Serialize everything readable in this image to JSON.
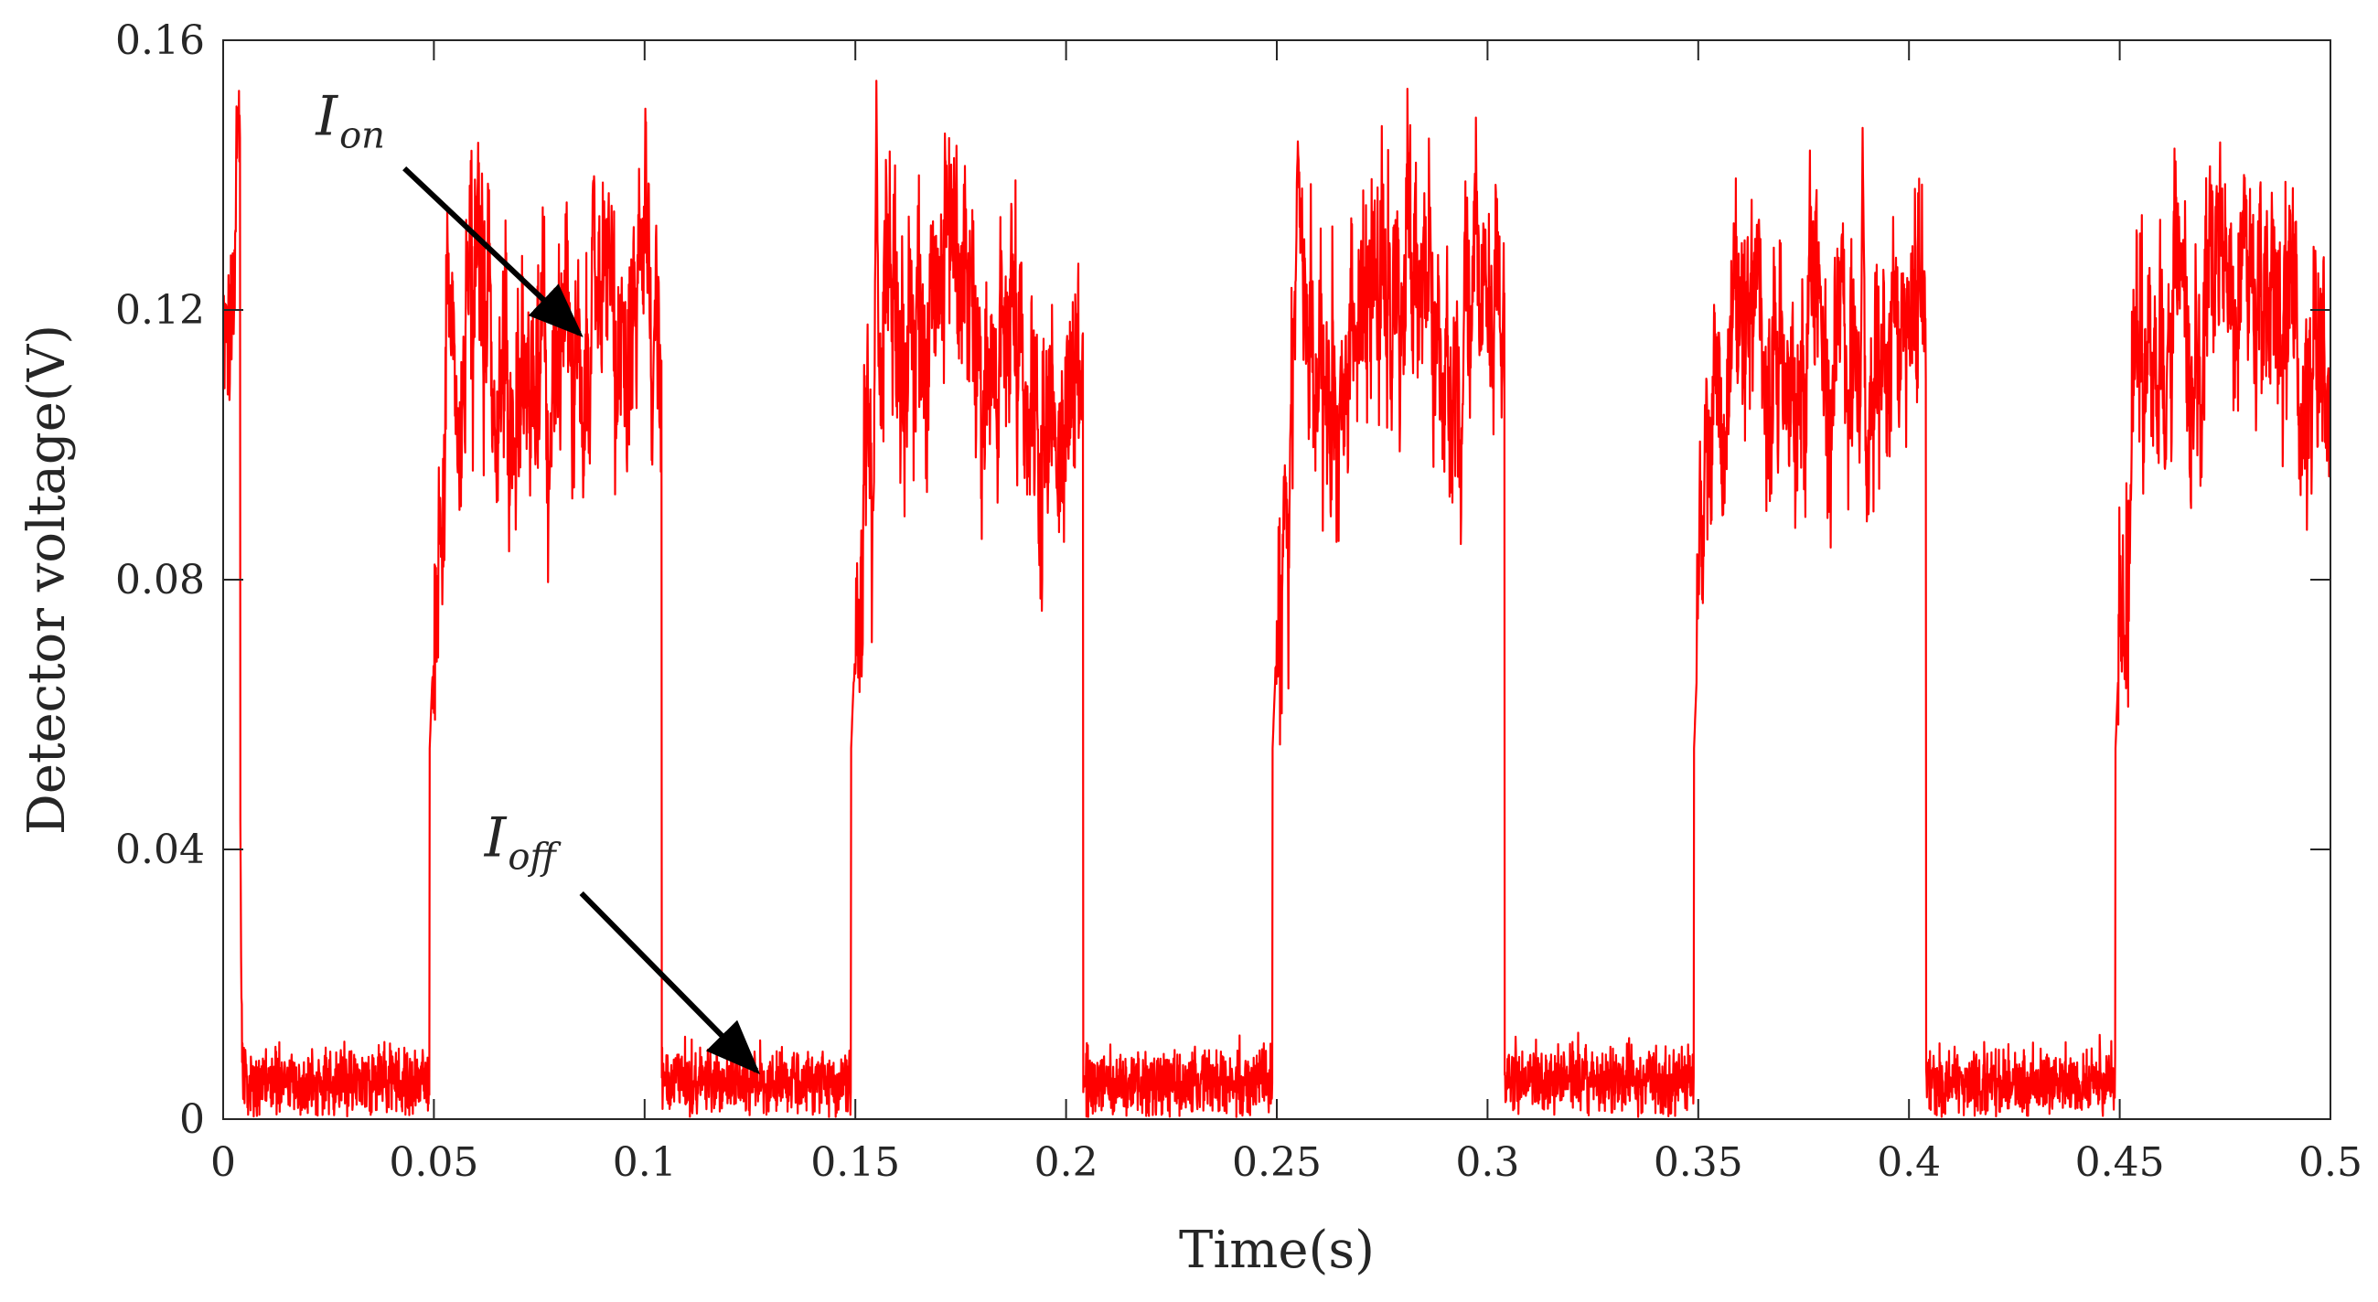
{
  "chart_data": {
    "type": "line",
    "title": "",
    "xlabel": "Time(s)",
    "ylabel": "Detector voltage(V)",
    "xlim": [
      0,
      0.5
    ],
    "ylim": [
      0,
      0.16
    ],
    "grid": false,
    "box": true,
    "x_ticks": [
      {
        "value": 0,
        "label": "0"
      },
      {
        "value": 0.05,
        "label": "0.05"
      },
      {
        "value": 0.1,
        "label": "0.1"
      },
      {
        "value": 0.15,
        "label": "0.15"
      },
      {
        "value": 0.2,
        "label": "0.2"
      },
      {
        "value": 0.25,
        "label": "0.25"
      },
      {
        "value": 0.3,
        "label": "0.3"
      },
      {
        "value": 0.35,
        "label": "0.35"
      },
      {
        "value": 0.4,
        "label": "0.4"
      },
      {
        "value": 0.45,
        "label": "0.45"
      },
      {
        "value": 0.5,
        "label": "0.5"
      }
    ],
    "y_ticks": [
      {
        "value": 0,
        "label": "0"
      },
      {
        "value": 0.04,
        "label": "0.04"
      },
      {
        "value": 0.08,
        "label": "0.08"
      },
      {
        "value": 0.12,
        "label": "0.12"
      },
      {
        "value": 0.16,
        "label": "0.16"
      }
    ],
    "series": [
      {
        "name": "Detector voltage",
        "color": "#ff0000",
        "off_level": 0.0055,
        "on_level": 0.12,
        "noise_off": 0.0045,
        "noise_on": 0.012,
        "rise_start_level": 0.055,
        "initial_on_until": 0.004,
        "on_intervals": [
          [
            0.049,
            0.104
          ],
          [
            0.149,
            0.204
          ],
          [
            0.249,
            0.304
          ],
          [
            0.349,
            0.404
          ],
          [
            0.449,
            0.5
          ]
        ],
        "peaks": [
          {
            "x": 0.0035,
            "y": 0.15
          },
          {
            "x": 0.155,
            "y": 0.154
          },
          {
            "x": 0.255,
            "y": 0.145
          },
          {
            "x": 0.389,
            "y": 0.147
          },
          {
            "x": 0.0878,
            "y": 0.141
          }
        ]
      }
    ],
    "annotations": [
      {
        "name": "ion",
        "main": "I",
        "sub": "on",
        "text_at": [
          0.022,
          0.146
        ],
        "arrow_from": [
          0.043,
          0.141
        ],
        "arrow_to": [
          0.0845,
          0.1165
        ]
      },
      {
        "name": "ioff",
        "main": "I",
        "sub": "off",
        "text_at": [
          0.062,
          0.039
        ],
        "arrow_from": [
          0.085,
          0.0335
        ],
        "arrow_to": [
          0.1265,
          0.0072
        ]
      }
    ]
  }
}
